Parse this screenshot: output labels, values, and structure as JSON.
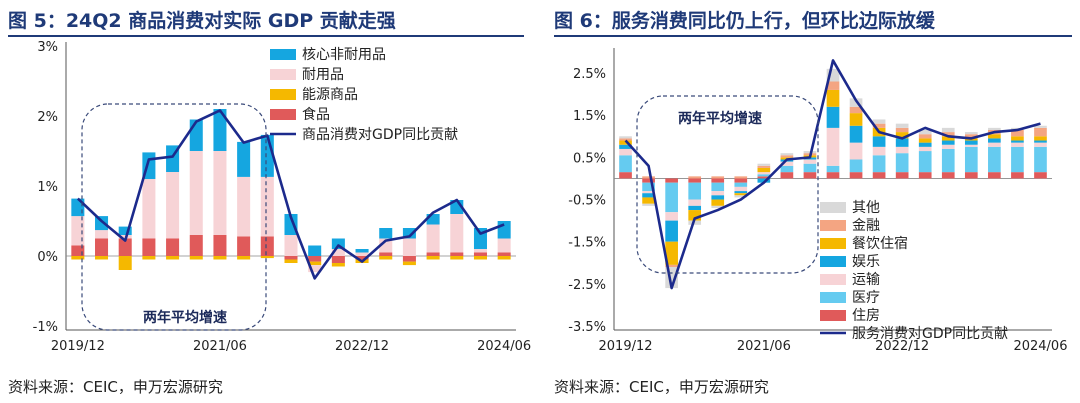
{
  "charts": [
    {
      "title": "图 5：24Q2 商品消费对实际 GDP 贡献走强",
      "source": "资料来源：CEIC，申万宏源研究",
      "annotation": "两年平均增速",
      "chart_data": {
        "type": "bar",
        "stacked": true,
        "ylim": [
          -1,
          3
        ],
        "yticks": [
          "-1%",
          "0%",
          "1%",
          "2%",
          "3%"
        ],
        "ytick_values": [
          -1,
          0,
          1,
          2,
          3
        ],
        "xtick_labels": [
          "2019/12",
          "2021/06",
          "2022/12",
          "2024/06"
        ],
        "xtick_index": [
          0,
          6,
          12,
          18
        ],
        "categories": [
          "2019Q4",
          "2020Q1",
          "2020Q2",
          "2020Q3",
          "2020Q4",
          "2021Q1",
          "2021Q2",
          "2021Q3",
          "2021Q4",
          "2022Q1",
          "2022Q2",
          "2022Q3",
          "2022Q4",
          "2023Q1",
          "2023Q2",
          "2023Q3",
          "2023Q4",
          "2024Q1",
          "2024Q2"
        ],
        "series": [
          {
            "name": "食品",
            "color": "#e05a5a",
            "values": [
              0.15,
              0.25,
              0.25,
              0.25,
              0.25,
              0.3,
              0.3,
              0.28,
              0.28,
              -0.05,
              -0.08,
              -0.1,
              -0.05,
              0.05,
              -0.08,
              0.05,
              0.05,
              0.05,
              0.05
            ]
          },
          {
            "name": "能源商品",
            "color": "#f5b800",
            "values": [
              -0.05,
              -0.05,
              -0.2,
              -0.05,
              -0.05,
              -0.05,
              -0.05,
              -0.05,
              -0.03,
              -0.05,
              -0.05,
              -0.05,
              -0.05,
              -0.05,
              -0.05,
              -0.05,
              -0.05,
              -0.05,
              -0.05
            ]
          },
          {
            "name": "耐用品",
            "color": "#f7d3d6",
            "values": [
              0.42,
              0.12,
              0.05,
              0.85,
              0.95,
              1.2,
              1.2,
              0.85,
              0.85,
              0.3,
              -0.1,
              0.1,
              0.05,
              0.2,
              0.25,
              0.4,
              0.55,
              0.05,
              0.2
            ]
          },
          {
            "name": "核心非耐用品",
            "color": "#15a6e0",
            "values": [
              0.25,
              0.2,
              0.12,
              0.38,
              0.38,
              0.45,
              0.6,
              0.5,
              0.6,
              0.3,
              0.15,
              0.15,
              0.05,
              0.15,
              0.15,
              0.15,
              0.2,
              0.3,
              0.25
            ]
          }
        ],
        "line": {
          "name": "商品消费对GDP同比贡献",
          "color": "#1c2a8c",
          "values": [
            0.82,
            0.5,
            0.22,
            1.38,
            1.42,
            1.92,
            2.08,
            1.62,
            1.72,
            0.55,
            -0.32,
            0.15,
            -0.08,
            0.22,
            0.28,
            0.62,
            0.8,
            0.32,
            0.45
          ]
        }
      }
    },
    {
      "title": "图 6：服务消费同比仍上行，但环比边际放缓",
      "source": "资料来源：CEIC，申万宏源研究",
      "annotation": "两年平均增速",
      "chart_data": {
        "type": "bar",
        "stacked": true,
        "ylim": [
          -3.5,
          3.0
        ],
        "yticks": [
          "-3.5%",
          "-2.5%",
          "-1.5%",
          "-0.5%",
          "0.5%",
          "1.5%",
          "2.5%"
        ],
        "ytick_values": [
          -3.5,
          -2.5,
          -1.5,
          -0.5,
          0.5,
          1.5,
          2.5
        ],
        "xtick_labels": [
          "2019/12",
          "2021/06",
          "2022/12",
          "2024/06"
        ],
        "xtick_index": [
          0,
          6,
          12,
          18
        ],
        "categories": [
          "2019Q4",
          "2020Q1",
          "2020Q2",
          "2020Q3",
          "2020Q4",
          "2021Q1",
          "2021Q2",
          "2021Q3",
          "2021Q4",
          "2022Q1",
          "2022Q2",
          "2022Q3",
          "2022Q4",
          "2023Q1",
          "2023Q2",
          "2023Q3",
          "2023Q4",
          "2024Q1",
          "2024Q2"
        ],
        "series": [
          {
            "name": "住房",
            "color": "#e05a5a",
            "values": [
              0.15,
              -0.1,
              -0.1,
              -0.1,
              -0.1,
              -0.1,
              0.05,
              0.15,
              0.15,
              0.15,
              0.15,
              0.15,
              0.15,
              0.15,
              0.15,
              0.15,
              0.15,
              0.15,
              0.15
            ]
          },
          {
            "name": "医疗",
            "color": "#65cbf0",
            "values": [
              0.4,
              -0.2,
              -0.7,
              -0.4,
              -0.2,
              -0.1,
              0.05,
              0.15,
              0.2,
              0.15,
              0.3,
              0.4,
              0.45,
              0.5,
              0.55,
              0.6,
              0.6,
              0.6,
              0.6
            ]
          },
          {
            "name": "运输",
            "color": "#f7d3d6",
            "values": [
              0.15,
              -0.05,
              -0.2,
              -0.15,
              -0.1,
              -0.1,
              0.05,
              0.1,
              0.1,
              0.9,
              0.4,
              0.2,
              0.15,
              0.1,
              0.1,
              0.05,
              0.1,
              0.1,
              0.1
            ]
          },
          {
            "name": "娱乐",
            "color": "#15a6e0",
            "values": [
              0.1,
              -0.1,
              -0.5,
              -0.1,
              -0.1,
              -0.05,
              -0.1,
              0.05,
              0.05,
              0.5,
              0.4,
              0.25,
              0.2,
              0.1,
              0.1,
              0.1,
              0.1,
              0.05,
              0.05
            ]
          },
          {
            "name": "餐饮住宿",
            "color": "#f5b800",
            "values": [
              0.1,
              -0.15,
              -0.55,
              -0.25,
              -0.15,
              -0.05,
              0.1,
              0.05,
              0.05,
              0.4,
              0.3,
              0.2,
              0.15,
              0.1,
              0.1,
              0.05,
              0.1,
              0.1,
              0.1
            ]
          },
          {
            "name": "金融",
            "color": "#f4a582",
            "values": [
              0.05,
              0.05,
              -0.05,
              0.05,
              0.05,
              0.05,
              0.05,
              0.05,
              0.05,
              0.2,
              0.15,
              0.1,
              0.1,
              0.1,
              0.1,
              0.1,
              0.1,
              0.15,
              0.2
            ]
          },
          {
            "name": "其他",
            "color": "#d9d9d9",
            "values": [
              0.05,
              -0.05,
              -0.5,
              -0.1,
              -0.05,
              -0.05,
              0.05,
              0.05,
              0.05,
              0.3,
              0.2,
              0.1,
              0.1,
              0.1,
              0.1,
              0.05,
              0.05,
              0.05,
              0.05
            ]
          }
        ],
        "line": {
          "name": "服务消费对GDP同比贡献",
          "color": "#1c2a8c",
          "values": [
            0.9,
            0.3,
            -2.6,
            -0.95,
            -0.75,
            -0.5,
            -0.1,
            0.45,
            0.5,
            2.8,
            1.85,
            1.1,
            0.95,
            1.2,
            1.0,
            0.95,
            1.1,
            1.15,
            1.3
          ]
        }
      }
    }
  ]
}
